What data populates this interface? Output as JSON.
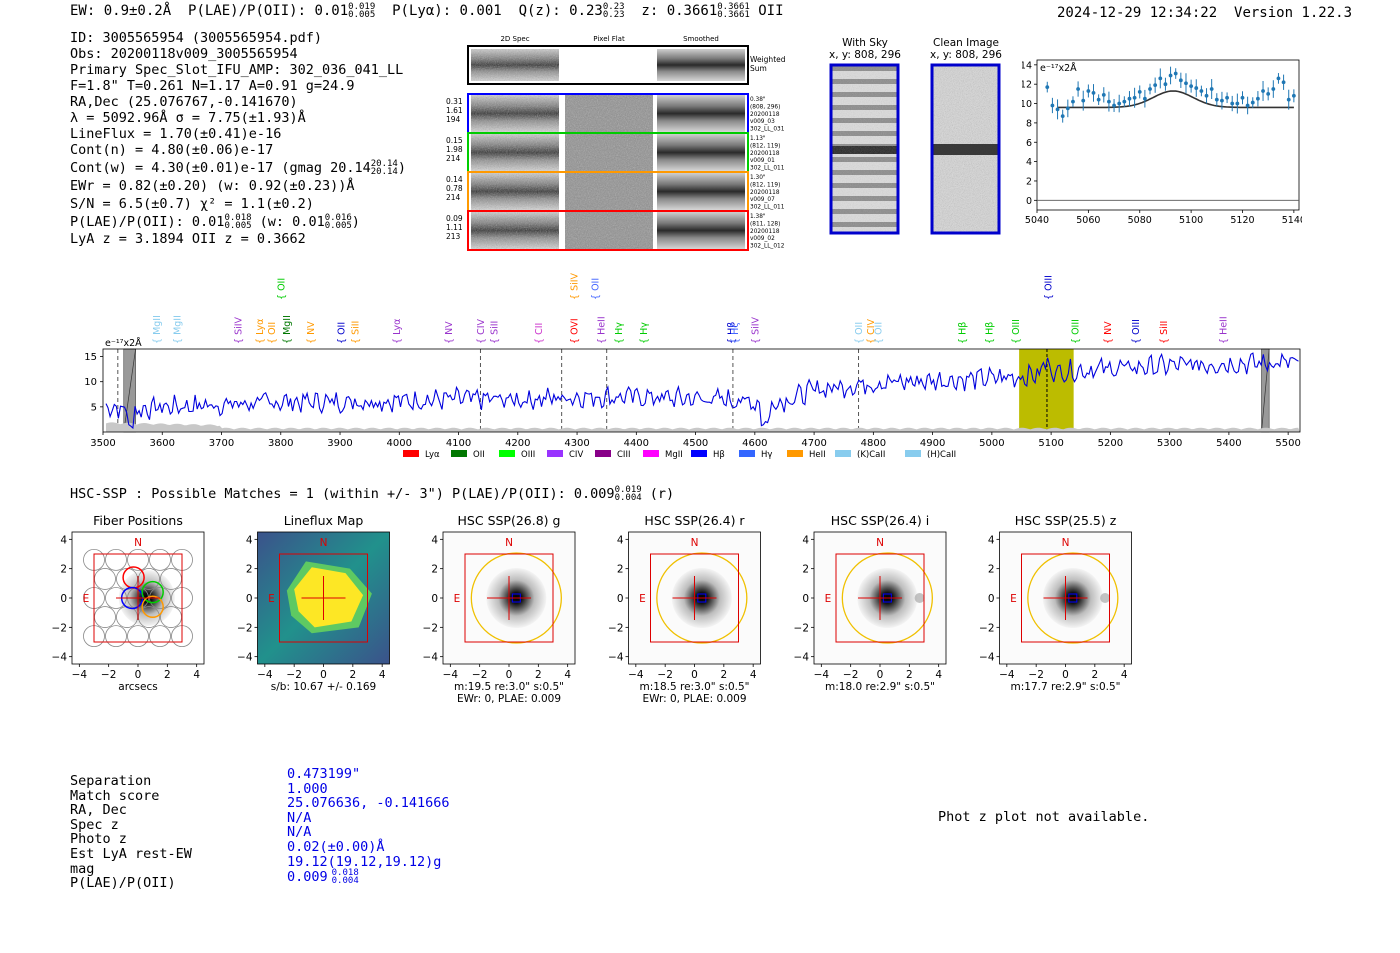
{
  "header": {
    "ew": "EW: 0.9±0.2Å",
    "plae_label": "P(LAE)/P(OII): 0.01",
    "plae_hi": "0.019",
    "plae_lo": "0.005",
    "plya": "P(Lyα): 0.001",
    "qz_label": "Q(z): 0.23",
    "qz_hi": "0.23",
    "qz_lo": "0.23",
    "z_label": "z: 0.3661",
    "z_hi": "0.3661",
    "z_lo": "0.3661",
    "z_line": "OII",
    "timestamp": "2024-12-29 12:34:22",
    "version": "Version 1.22.3"
  },
  "info": {
    "id": "ID: 3005565954 (3005565954.pdf)",
    "obs": "Obs: 20200118v009_3005565954",
    "primary": "Primary Spec_Slot_IFU_AMP: 302_036_041_LL",
    "fparams": "F=1.8\"  T=0.261  N=1.17  A=0.91  g=24.9",
    "radec": "RA,Dec (25.076767,-0.141670)",
    "lambda": "λ = 5092.96Å  σ = 7.75(±1.93)Å",
    "lineflux": "LineFlux = 1.70(±0.41)e-16",
    "contn": "Cont(n) = 4.80(±0.06)e-17",
    "contw": "Cont(w) = 4.30(±0.01)e-17 (gmag 20.14",
    "contw_hi": "20.14",
    "contw_lo": "20.14",
    "ewr": "EWr = 0.82(±0.20) (w: 0.92(±0.23))Å",
    "sn": "S/N = 6.5(±0.7)  χ² = 1.1(±0.2)",
    "plae": "P(LAE)/P(OII): 0.01",
    "plae_hi": "0.018",
    "plae_lo": "0.005",
    "plae_w": "(w: 0.01",
    "plae_w_hi": "0.016",
    "plae_w_lo": "0.005",
    "lyaz": "LyA z = 3.1894  OII z = 0.3662"
  },
  "cutouts": {
    "col_2d": "2D Spec",
    "col_flat": "Pixel Flat",
    "col_smooth": "Smoothed",
    "weighted": "Weighted Sum",
    "rows": [
      {
        "color": "#0000ff",
        "n1": "0.31",
        "n2": "1.61",
        "n3": "194",
        "r1": "0.38\"",
        "r2": "(808, 296)",
        "r3": "20200118",
        "r4": "v009_03",
        "r5": "302_LL_031"
      },
      {
        "color": "#00cc00",
        "n1": "0.15",
        "n2": "1.98",
        "n3": "214",
        "r1": "1.13\"",
        "r2": "(812, 119)",
        "r3": "20200118",
        "r4": "v009_01",
        "r5": "302_LL_011"
      },
      {
        "color": "#ff9900",
        "n1": "0.14",
        "n2": "0.78",
        "n3": "214",
        "r1": "1.30\"",
        "r2": "(812, 119)",
        "r3": "20200118",
        "r4": "v009_07",
        "r5": "302_LL_011"
      },
      {
        "color": "#ff0000",
        "n1": "0.09",
        "n2": "1.11",
        "n3": "213",
        "r1": "1.38\"",
        "r2": "(811, 128)",
        "r3": "20200118",
        "r4": "v009_02",
        "r5": "302_LL_012"
      }
    ]
  },
  "sky": {
    "with_sky": "With Sky",
    "with_sky_xy": "x, y: 808, 296",
    "clean": "Clean Image",
    "clean_xy": "x, y: 808, 296"
  },
  "chart_data": [
    {
      "type": "line",
      "title": "",
      "ylabel": "e⁻¹⁷x2Å",
      "xlim": [
        5040,
        5142
      ],
      "ylim": [
        -1,
        14.5
      ],
      "xticks": [
        5040,
        5060,
        5080,
        5100,
        5120,
        5140
      ],
      "yticks": [
        0,
        2,
        4,
        6,
        8,
        10,
        12,
        14
      ],
      "fit": {
        "continuum": 9.6,
        "amplitude": 1.7,
        "center": 5093,
        "sigma": 7.75
      },
      "data_x": [
        5044,
        5046,
        5048,
        5050,
        5052,
        5054,
        5056,
        5058,
        5060,
        5062,
        5064,
        5066,
        5068,
        5070,
        5072,
        5074,
        5076,
        5078,
        5080,
        5082,
        5084,
        5086,
        5088,
        5090,
        5092,
        5094,
        5096,
        5098,
        5100,
        5102,
        5104,
        5106,
        5108,
        5110,
        5112,
        5114,
        5116,
        5118,
        5120,
        5122,
        5124,
        5126,
        5128,
        5130,
        5132,
        5134,
        5136,
        5138,
        5140
      ],
      "data_y": [
        11.7,
        9.8,
        9.4,
        8.7,
        9.5,
        10.2,
        11.5,
        10.3,
        11.3,
        11.1,
        10.4,
        10.9,
        10.2,
        9.8,
        10.0,
        10.2,
        10.5,
        10.6,
        11.2,
        10.5,
        11.5,
        11.9,
        12.6,
        12.0,
        12.9,
        13.1,
        12.4,
        12.1,
        11.8,
        11.6,
        11.3,
        10.8,
        11.5,
        10.4,
        10.3,
        10.6,
        10.0,
        10.0,
        10.6,
        9.8,
        10.1,
        10.5,
        11.3,
        11.0,
        11.5,
        12.6,
        12.2,
        10.4,
        10.8
      ]
    },
    {
      "type": "line",
      "ylabel": "e⁻¹⁷x2Å",
      "xlim": [
        3500,
        5520
      ],
      "ylim": [
        0,
        16.5
      ],
      "xticks": [
        3500,
        3600,
        3700,
        3800,
        3900,
        4000,
        4100,
        4200,
        4300,
        4400,
        4500,
        4600,
        4700,
        4800,
        4900,
        5000,
        5100,
        5200,
        5300,
        5400,
        5500
      ],
      "yticks": [
        5,
        10,
        15
      ],
      "highlight_range": [
        5046,
        5138
      ],
      "emission_line": 5093,
      "masked_ranges": [
        [
          3535,
          3555
        ],
        [
          5455,
          5468
        ]
      ],
      "dashed_lines": [
        4137,
        4274,
        4350,
        4563,
        4775
      ],
      "continuum_knots": [
        [
          3505,
          5.2
        ],
        [
          3545,
          4.2
        ],
        [
          3600,
          5.0
        ],
        [
          3700,
          5.4
        ],
        [
          3800,
          6.0
        ],
        [
          3900,
          6.0
        ],
        [
          4000,
          6.2
        ],
        [
          4100,
          6.6
        ],
        [
          4200,
          6.4
        ],
        [
          4300,
          7.0
        ],
        [
          4400,
          7.0
        ],
        [
          4500,
          6.6
        ],
        [
          4560,
          6.4
        ],
        [
          4620,
          5.6
        ],
        [
          4660,
          6.5
        ],
        [
          4700,
          8.4
        ],
        [
          4800,
          9.7
        ],
        [
          4900,
          10.2
        ],
        [
          5000,
          10.7
        ],
        [
          5050,
          11.0
        ],
        [
          5100,
          11.9
        ],
        [
          5200,
          12.6
        ],
        [
          5300,
          13.2
        ],
        [
          5400,
          13.6
        ],
        [
          5520,
          13.8
        ]
      ],
      "line_labels_top": [
        {
          "label": "OII",
          "x": 3800,
          "color": "#00cc00",
          "row": 0
        },
        {
          "label": "SiIV",
          "x": 4295,
          "color": "#ff9900",
          "row": 0
        },
        {
          "label": "OII",
          "x": 4330,
          "color": "#4466ff",
          "row": 0
        },
        {
          "label": "OIII",
          "x": 5095,
          "color": "#0000cc",
          "row": 0
        },
        {
          "label": "MgII",
          "x": 3590,
          "color": "#88ccee",
          "row": 1
        },
        {
          "label": "MgII",
          "x": 3625,
          "color": "#88ccee",
          "row": 1
        },
        {
          "label": "SiIV",
          "x": 3728,
          "color": "#9933cc",
          "row": 1
        },
        {
          "label": "Lyα",
          "x": 3764,
          "color": "#ff9900",
          "row": 1
        },
        {
          "label": "OII",
          "x": 3784,
          "color": "#ff9900",
          "row": 1
        },
        {
          "label": "MgII",
          "x": 3810,
          "color": "#007700",
          "row": 1
        },
        {
          "label": "NV",
          "x": 3850,
          "color": "#ff9900",
          "row": 1
        },
        {
          "label": "OII",
          "x": 3902,
          "color": "#0000cc",
          "row": 1
        },
        {
          "label": "SiII",
          "x": 3925,
          "color": "#ff9900",
          "row": 1
        },
        {
          "label": "Lyα",
          "x": 3995,
          "color": "#9933cc",
          "row": 1
        },
        {
          "label": "NV",
          "x": 4083,
          "color": "#9933cc",
          "row": 1
        },
        {
          "label": "CIV",
          "x": 4137,
          "color": "#9933cc",
          "row": 1
        },
        {
          "label": "SiII",
          "x": 4160,
          "color": "#9933cc",
          "row": 1
        },
        {
          "label": "CII",
          "x": 4235,
          "color": "#cc33cc",
          "row": 1
        },
        {
          "label": "OVI",
          "x": 4295,
          "color": "#ff0000",
          "row": 1
        },
        {
          "label": "HeII",
          "x": 4340,
          "color": "#9933cc",
          "row": 1
        },
        {
          "label": "Hγ",
          "x": 4370,
          "color": "#00cc00",
          "row": 1
        },
        {
          "label": "Hγ",
          "x": 4412,
          "color": "#00cc00",
          "row": 1
        },
        {
          "label": "Hβ",
          "x": 4560,
          "color": "#0000cc",
          "row": 1
        },
        {
          "label": "Hζ",
          "x": 4566,
          "color": "#4466ff",
          "row": 1
        },
        {
          "label": "SiIV",
          "x": 4600,
          "color": "#9933cc",
          "row": 1
        },
        {
          "label": "OII",
          "x": 4775,
          "color": "#88ccee",
          "row": 1
        },
        {
          "label": "CIV",
          "x": 4795,
          "color": "#ff9900",
          "row": 1
        },
        {
          "label": "OII",
          "x": 4808,
          "color": "#88ccee",
          "row": 1
        },
        {
          "label": "Hβ",
          "x": 4950,
          "color": "#00cc00",
          "row": 1
        },
        {
          "label": "Hβ",
          "x": 4995,
          "color": "#00cc00",
          "row": 1
        },
        {
          "label": "OIII",
          "x": 5040,
          "color": "#00cc00",
          "row": 1
        },
        {
          "label": "OIII",
          "x": 5140,
          "color": "#00cc00",
          "row": 1
        },
        {
          "label": "NV",
          "x": 5195,
          "color": "#ff0000",
          "row": 1
        },
        {
          "label": "OIII",
          "x": 5242,
          "color": "#0000cc",
          "row": 1
        },
        {
          "label": "SiII",
          "x": 5290,
          "color": "#ff0000",
          "row": 1
        },
        {
          "label": "HeII",
          "x": 5390,
          "color": "#9933cc",
          "row": 1
        }
      ],
      "legend": [
        {
          "label": "Lyα",
          "color": "#ff0000"
        },
        {
          "label": "OII",
          "color": "#007700"
        },
        {
          "label": "OIII",
          "color": "#00ff00"
        },
        {
          "label": "CIV",
          "color": "#9933ff"
        },
        {
          "label": "CIII",
          "color": "#880088"
        },
        {
          "label": "MgII",
          "color": "#ff00ff"
        },
        {
          "label": "Hβ",
          "color": "#0000ff"
        },
        {
          "label": "Hγ",
          "color": "#3366ff"
        },
        {
          "label": "HeII",
          "color": "#ff9900"
        },
        {
          "label": "(K)CaII",
          "color": "#88ccee"
        },
        {
          "label": "(H)CaII",
          "color": "#88ccee"
        }
      ]
    }
  ],
  "hsc": {
    "summary": "HSC-SSP : Possible Matches = 1 (within +/- 3\")  P(LAE)/P(OII): 0.009",
    "summary_hi": "0.019",
    "summary_lo": "0.004",
    "summary_band": "(r)",
    "panels": [
      {
        "title": "Fiber Positions",
        "sub1": "arcsecs",
        "sub2": ""
      },
      {
        "title": "Lineflux Map",
        "sub1": "s/b: 10.67 +/- 0.169",
        "sub2": ""
      },
      {
        "title": "HSC SSP(26.8) g",
        "sub1": "m:19.5  re:3.0\"  s:0.5\"",
        "sub2": "EWr: 0, PLAE: 0.009"
      },
      {
        "title": "HSC SSP(26.4) r",
        "sub1": "m:18.5  re:3.0\"  s:0.5\"",
        "sub2": "EWr: 0, PLAE: 0.009"
      },
      {
        "title": "HSC SSP(26.4) i",
        "sub1": "m:18.0  re:2.9\"  s:0.5\"",
        "sub2": ""
      },
      {
        "title": "HSC SSP(25.5) z",
        "sub1": "m:17.7  re:2.9\"  s:0.5\"",
        "sub2": ""
      }
    ],
    "north": "N",
    "east": "E",
    "ticks": [
      "−4",
      "−2",
      "0",
      "2",
      "4"
    ],
    "ticks_y": [
      "4",
      "2",
      "0",
      "−2",
      "−4"
    ]
  },
  "table": {
    "keys": [
      "Separation",
      "Match score",
      "RA, Dec",
      "Spec z",
      "Photo z",
      "Est LyA rest-EW",
      "mag",
      "P(LAE)/P(OII)"
    ],
    "values": [
      "0.473199\"",
      "1.000",
      "25.076636, -0.141666",
      "N/A",
      "N/A",
      "0.02(±0.00)Å",
      "19.12(19.12,19.12)g",
      "0.009"
    ],
    "plae_hi": "0.018",
    "plae_lo": "0.004"
  },
  "photz_message": "Phot z plot not available."
}
